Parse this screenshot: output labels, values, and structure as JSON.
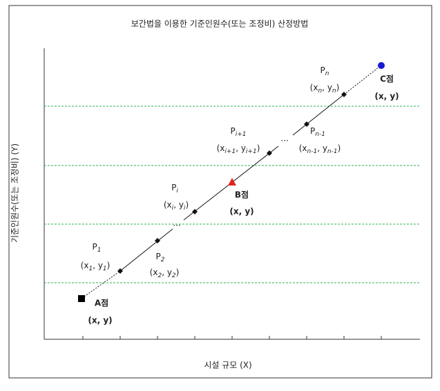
{
  "title": "보간법을 이용한 기준인원수(또는 조정비) 산정방법",
  "y_axis_label": "기준인원수(또는 조정비) (Y)",
  "x_axis_label": "시설 규모 (X)",
  "points": [
    {
      "name": "P",
      "sub": "1",
      "coord": [
        "(x",
        "1",
        ", y",
        "1",
        ")"
      ]
    },
    {
      "name": "P",
      "sub": "2",
      "coord": [
        "(x",
        "2",
        ", y",
        "2",
        ")"
      ]
    },
    {
      "name": "P",
      "sub": "i",
      "coord": [
        "(x",
        "i",
        ", y",
        "i",
        ")"
      ]
    },
    {
      "name": "P",
      "sub": "i+1",
      "coord": [
        "(x",
        "i+1",
        ", y",
        "i+1",
        ")"
      ]
    },
    {
      "name": "P",
      "sub": "n-1",
      "coord": [
        "(x",
        "n-1",
        ", y",
        "n-1",
        ")"
      ]
    },
    {
      "name": "P",
      "sub": "n",
      "coord": [
        "(x",
        "n",
        ", y",
        "n",
        ")"
      ]
    }
  ],
  "reference_points": [
    {
      "name": "A점",
      "coord": "(x, y)"
    },
    {
      "name": "B점",
      "coord": "(x, y)"
    },
    {
      "name": "C점",
      "coord": "(x, y)"
    }
  ],
  "ellipses": [
    "...",
    "..."
  ]
}
